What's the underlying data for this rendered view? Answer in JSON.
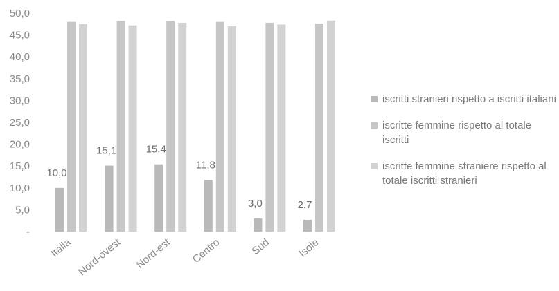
{
  "chart_data": {
    "type": "bar",
    "categories": [
      "Italia",
      "Nord-ovest",
      "Nord-est",
      "Centro",
      "Sud",
      "Isole"
    ],
    "series": [
      {
        "name": "iscritti stranieri rispetto a iscritti italiani",
        "values": [
          10.0,
          15.1,
          15.4,
          11.8,
          3.0,
          2.7
        ],
        "labels": [
          "10,0",
          "15,1",
          "15,4",
          "11,8",
          "3,0",
          "2,7"
        ],
        "color": "#b9b9b9"
      },
      {
        "name": "iscritte femmine rispetto al totale iscritti",
        "values": [
          48.0,
          48.2,
          48.2,
          48.0,
          47.8,
          47.6
        ],
        "color": "#c6c6c6"
      },
      {
        "name": "iscritte femmine straniere rispetto al totale iscritti stranieri",
        "values": [
          47.5,
          47.2,
          47.8,
          47.0,
          47.4,
          48.3
        ],
        "color": "#d2d2d2"
      }
    ],
    "y_ticks": [
      "-",
      "5,0",
      "10,0",
      "15,0",
      "20,0",
      "25,0",
      "30,0",
      "35,0",
      "40,0",
      "45,0",
      "50,0"
    ],
    "ylim": [
      0,
      50
    ],
    "grid": false,
    "legend_position": "right",
    "title": "",
    "xlabel": "",
    "ylabel": ""
  },
  "legend": {
    "items": [
      {
        "label": "iscritti stranieri rispetto a iscritti italiani",
        "color": "#b9b9b9"
      },
      {
        "label": "iscritte femmine rispetto al totale iscritti",
        "color": "#c6c6c6"
      },
      {
        "label": "iscritte femmine straniere rispetto al totale iscritti stranieri",
        "color": "#d2d2d2"
      }
    ]
  }
}
